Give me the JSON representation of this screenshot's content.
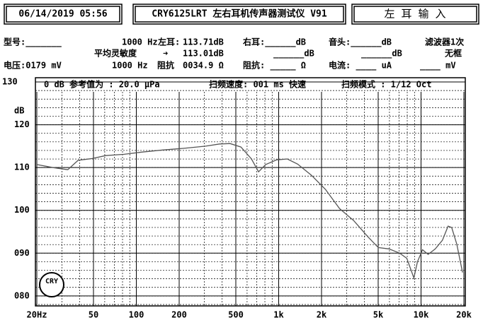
{
  "header": {
    "datetime": "06/14/2019 05:56",
    "model": "CRY6125LRT 左右耳机传声器测试仪 V91",
    "channel": "左 耳  输 入"
  },
  "info": {
    "rows": [
      [
        "型号:_______",
        "1000 Hz",
        "左耳:",
        "113.71dB",
        "右耳:______dB",
        "音头:______dB",
        "滤波器1次"
      ],
      [
        "平均灵敏度",
        "➜",
        "113.01dB",
        "______dB",
        "______dB",
        "无框"
      ],
      [
        "电压:0179 mV",
        "1000 Hz",
        "阻抗",
        "0034.9 Ω",
        "阻抗: _____ Ω",
        "电流: ____ uA",
        "____ mV"
      ]
    ]
  },
  "logo": "CRY",
  "chart_data": {
    "type": "line",
    "annotations": [
      "0 dB 参考值为 : 20.0 μPa",
      "扫频速度: 001 ms 快速",
      "扫频模式 : 1/12 Oct"
    ],
    "y_label": "dB",
    "x": [
      20,
      26,
      33,
      39,
      49,
      61,
      82,
      109,
      153,
      217,
      306,
      384,
      456,
      543,
      644,
      722,
      810,
      965,
      1150,
      1360,
      1700,
      2130,
      2680,
      3370,
      4240,
      5010,
      5960,
      7080,
      7940,
      8910,
      9440,
      10240,
      11210,
      12590,
      14130,
      15500,
      16420,
      17830,
      19570
    ],
    "values": [
      110.7,
      110.0,
      109.5,
      111.7,
      112.1,
      112.8,
      113.1,
      113.6,
      114.1,
      114.5,
      115.0,
      115.5,
      115.6,
      114.8,
      112.0,
      109.0,
      110.7,
      111.8,
      112.0,
      110.8,
      108.2,
      104.9,
      100.4,
      97.6,
      93.8,
      91.3,
      91.0,
      90.0,
      88.8,
      84.2,
      88.0,
      90.8,
      89.7,
      91.0,
      93.0,
      96.3,
      96.0,
      92.1,
      85.5
    ],
    "color": "#555555",
    "log_x": true,
    "xlim": [
      20,
      20000
    ],
    "xticks": [
      {
        "value": 20,
        "label": "20Hz"
      },
      50,
      100,
      200,
      500,
      {
        "value": 1000,
        "label": "1k"
      },
      {
        "value": 2000,
        "label": "2k"
      },
      {
        "value": 5000,
        "label": "5k"
      },
      {
        "value": 10000,
        "label": "10k"
      },
      {
        "value": 20000,
        "label": "20k"
      }
    ],
    "ylim": [
      78,
      130
    ],
    "yticks": [
      {
        "value": 80,
        "label": "080"
      },
      {
        "value": 90,
        "label": "090"
      },
      100,
      110,
      120,
      130
    ],
    "grid": true
  }
}
